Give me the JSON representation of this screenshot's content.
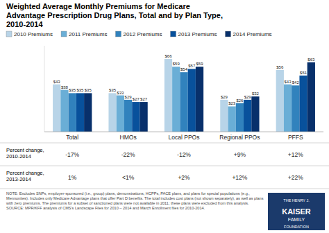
{
  "chart_data": {
    "type": "bar",
    "title": "Weighted Average Monthly Premiums for Medicare\nAdvantage Prescription Drug Plans, Total and by Plan Type,\n2010-2014",
    "categories": [
      "Total",
      "HMOs",
      "Local PPOs",
      "Regional PPOs",
      "PFFS"
    ],
    "series": [
      {
        "name": "2010 Premiums",
        "color": "#b8d4e8",
        "values": [
          43,
          35,
          66,
          29,
          56
        ],
        "value_labels": [
          "$43",
          "$35",
          "$66",
          "$29",
          "$56"
        ]
      },
      {
        "name": "2011 Premiums",
        "color": "#6aaed6",
        "values": [
          38,
          33,
          59,
          23,
          43
        ],
        "value_labels": [
          "$38",
          "$33",
          "$59",
          "$23",
          "$43"
        ]
      },
      {
        "name": "2012 Premiums",
        "color": "#3182bd",
        "values": [
          35,
          29,
          54,
          26,
          42
        ],
        "value_labels": [
          "$35",
          "$29",
          "$54",
          "$26",
          "$42"
        ]
      },
      {
        "name": "2013 Premiums",
        "color": "#08519c",
        "values": [
          35,
          27,
          57,
          29,
          51
        ],
        "value_labels": [
          "$35",
          "$27",
          "$57",
          "$29",
          "$51"
        ]
      },
      {
        "name": "2014 Premiums",
        "color": "#08306b",
        "values": [
          35,
          27,
          59,
          32,
          63
        ],
        "value_labels": [
          "$35",
          "$27",
          "$59",
          "$32",
          "$63"
        ]
      }
    ],
    "ylim": [
      0,
      78
    ],
    "data_labels": true,
    "tick_labels": "x",
    "grid": false,
    "legend": "top",
    "table_rows": [
      {
        "label": "Percent change,\n2010-2014",
        "cells": [
          "-17%",
          "-22%",
          "-12%",
          "+9%",
          "+12%"
        ]
      },
      {
        "label": "Percent change,\n2013-2014",
        "cells": [
          "1%",
          "<1%",
          "+2%",
          "+12%",
          "+22%"
        ]
      }
    ],
    "note": "NOTE:  Excludes SNPs, employer-sponsored (i.e., group) plans, demonstrations, HCPPs, PACE plans, and plans for special populations (e.g.,\nMennonites). Includes only Medicare Advantage plans that offer Part D benefits. The total includes cost plans (not shown separately), as well as plans\nwith zero premiums. The premiums for a subset of sanctioned plans were not available in 2011; these plans were excluded from this analysis.\nSOURCE:  MPR/KFF analysis of CMS's Landscape Files for 2010 – 2014 and March Enrollment files for 2010-2014.",
    "logo": [
      "THE HENRY J.",
      "KAISER",
      "FAMILY",
      "FOUNDATION"
    ]
  }
}
